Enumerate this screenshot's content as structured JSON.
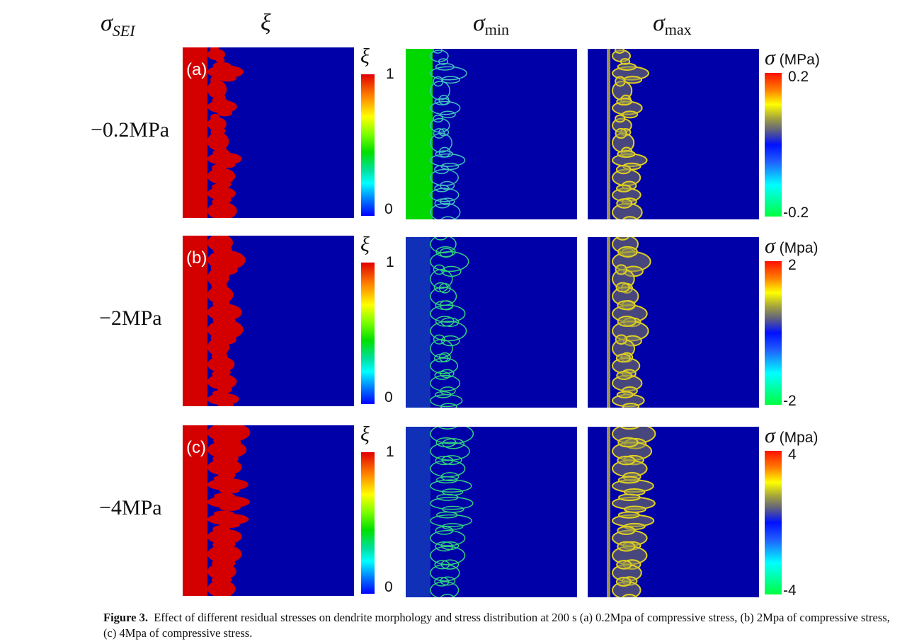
{
  "column_headers": {
    "sigma_sei": {
      "symbol": "σ",
      "subscript": "SEI"
    },
    "xi": "ξ",
    "sigma_min": {
      "symbol": "σ",
      "subscript": "min"
    },
    "sigma_max": {
      "symbol": "σ",
      "subscript": "max"
    }
  },
  "rows": [
    {
      "label": "−0.2MPa",
      "panel_label": "(a)",
      "xi_cbar": {
        "title": "ξ",
        "max": "1",
        "min": "0"
      },
      "sigma_cbar": {
        "symbol": "σ",
        "unit": "(MPa)",
        "max": "0.2",
        "min": "-0.2"
      }
    },
    {
      "label": "−2MPa",
      "panel_label": "(b)",
      "xi_cbar": {
        "title": "ξ",
        "max": "1",
        "min": "0"
      },
      "sigma_cbar": {
        "symbol": "σ",
        "unit": "(Mpa)",
        "max": "2",
        "min": "-2"
      }
    },
    {
      "label": "−4MPa",
      "panel_label": "(c)",
      "xi_cbar": {
        "title": "ξ",
        "max": "1",
        "min": "0"
      },
      "sigma_cbar": {
        "symbol": "σ",
        "unit": "(Mpa)",
        "max": "4",
        "min": "-4"
      }
    }
  ],
  "caption": {
    "label": "Figure 3.",
    "text": "Effect of different residual stresses on dendrite morphology and stress distribution at 200 s (a) 0.2Mpa of compressive stress, (b) 2Mpa of compressive stress, (c) 4Mpa of compressive stress."
  },
  "colors": {
    "background_blue": "#0000a8",
    "dendrite_red": "#d40000",
    "green": "#00d800",
    "yellow": "#e0d020"
  }
}
